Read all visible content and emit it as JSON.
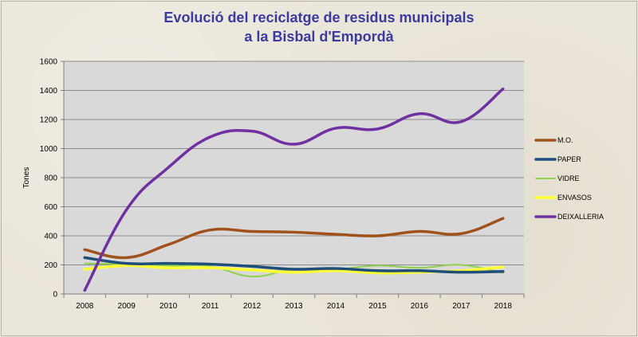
{
  "chart_data": {
    "type": "line",
    "title_lines": [
      "Evolució del reciclatge de residus municipals",
      "a la Bisbal d'Empordà"
    ],
    "xlabel": "",
    "ylabel": "Tones",
    "categories": [
      "2008",
      "2009",
      "2010",
      "2011",
      "2012",
      "2013",
      "2014",
      "2015",
      "2016",
      "2017",
      "2018"
    ],
    "ylim": [
      0,
      1600
    ],
    "yticks": [
      0,
      200,
      400,
      600,
      800,
      1000,
      1200,
      1400,
      1600
    ],
    "grid": true,
    "legend_position": "right",
    "series": [
      {
        "name": "M.O.",
        "color": "#a0521d",
        "values": [
          305,
          250,
          340,
          440,
          430,
          425,
          410,
          400,
          430,
          415,
          520
        ]
      },
      {
        "name": "PAPER",
        "color": "#1f4e79",
        "values": [
          250,
          210,
          210,
          205,
          190,
          170,
          175,
          160,
          160,
          150,
          155
        ]
      },
      {
        "name": "VIDRE",
        "color": "#92d050",
        "values": [
          210,
          205,
          195,
          190,
          120,
          170,
          170,
          195,
          180,
          200,
          145
        ]
      },
      {
        "name": "ENVASOS",
        "color": "#ffff33",
        "values": [
          170,
          195,
          180,
          180,
          165,
          150,
          160,
          145,
          150,
          160,
          185
        ]
      },
      {
        "name": "DEIXALLERIA",
        "color": "#7030a0",
        "values": [
          25,
          580,
          870,
          1080,
          1120,
          1030,
          1140,
          1135,
          1240,
          1185,
          1410
        ]
      }
    ]
  }
}
